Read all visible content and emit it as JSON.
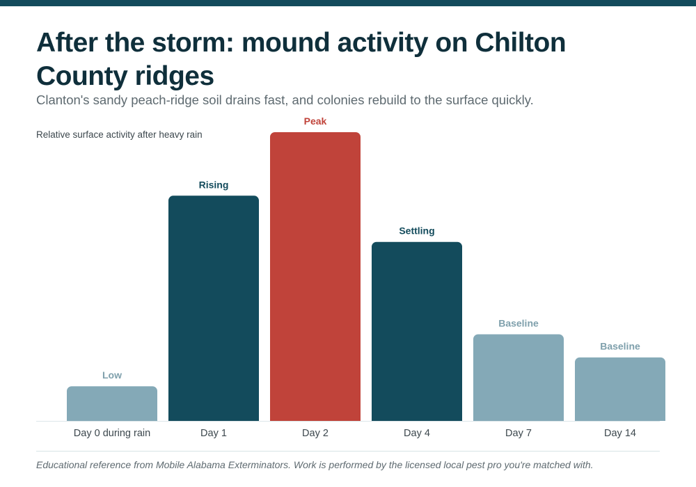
{
  "header": {
    "title": "After the storm: mound activity on Chilton County ridges",
    "subtitle": "Clanton's sandy peach-ridge soil drains fast, and colonies rebuild to the surface quickly.",
    "axis_note": "Relative surface activity after heavy rain"
  },
  "footer": {
    "text": "Educational reference from Mobile Alabama Exterminators. Work is performed by the licensed local pest pro you're matched with."
  },
  "colors": {
    "accent_bar": "#134B5C",
    "bar_dark": "#134B5C",
    "bar_peak": "#C0433A",
    "bar_light": "#84A9B7",
    "label_dark": "#134B5C",
    "label_peak": "#C0433A",
    "label_light": "#7FA0AC"
  },
  "chart_data": {
    "type": "bar",
    "title": "After the storm: mound activity on Chilton County ridges",
    "ylabel": "Relative surface activity after heavy rain",
    "categories": [
      "Day 0 during rain",
      "Day 1",
      "Day 2",
      "Day 4",
      "Day 7",
      "Day 14"
    ],
    "values": [
      12,
      78,
      100,
      62,
      30,
      22
    ],
    "data_labels": [
      "Low",
      "Rising",
      "Peak",
      "Settling",
      "Baseline",
      "Baseline"
    ],
    "styles": [
      "light",
      "dark",
      "peak",
      "dark",
      "light",
      "light"
    ],
    "ylim": [
      0,
      100
    ],
    "grid": false,
    "legend": "none"
  }
}
